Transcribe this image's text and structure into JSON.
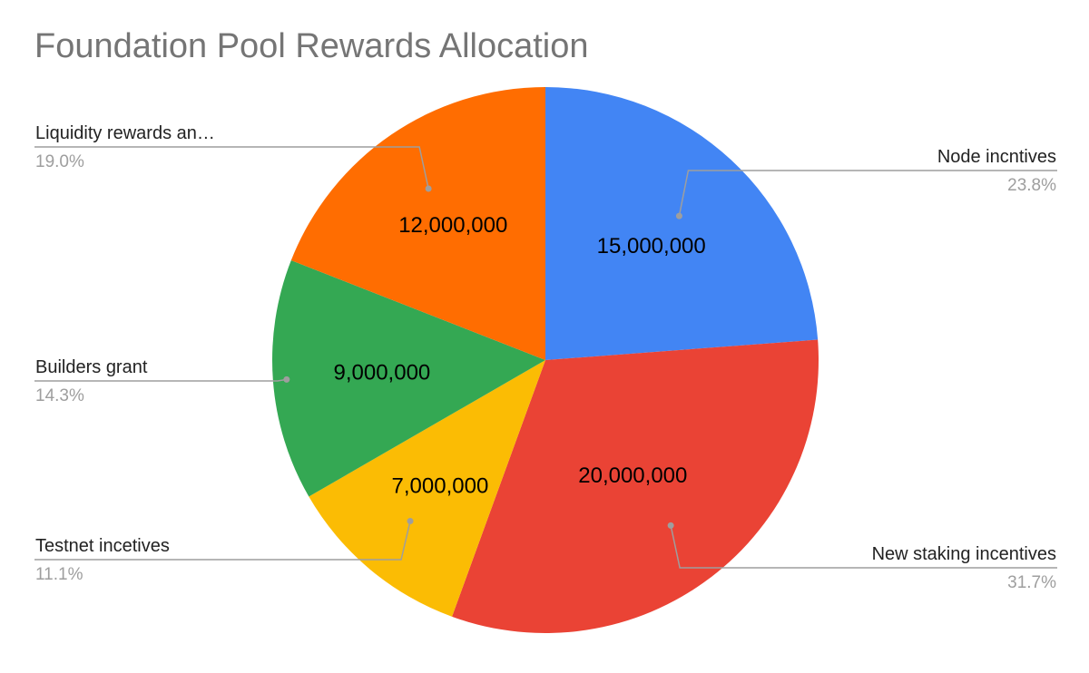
{
  "chart_data": {
    "type": "pie",
    "title": "Foundation Pool Rewards Allocation",
    "slices": [
      {
        "label": "Node incntives",
        "value": 15000000,
        "value_label": "15,000,000",
        "percent_label": "23.8%",
        "color": "#4285f4"
      },
      {
        "label": "New staking incentives",
        "value": 20000000,
        "value_label": "20,000,000",
        "percent_label": "31.7%",
        "color": "#ea4335"
      },
      {
        "label": "Testnet incetives",
        "value": 7000000,
        "value_label": "7,000,000",
        "percent_label": "11.1%",
        "color": "#fbbc04"
      },
      {
        "label": "Builders grant",
        "value": 9000000,
        "value_label": "9,000,000",
        "percent_label": "14.3%",
        "color": "#34a853"
      },
      {
        "label": "Liquidity rewards an…",
        "value": 12000000,
        "value_label": "12,000,000",
        "percent_label": "19.0%",
        "color": "#ff6d01"
      }
    ],
    "legend": "outside labels with leader lines"
  }
}
